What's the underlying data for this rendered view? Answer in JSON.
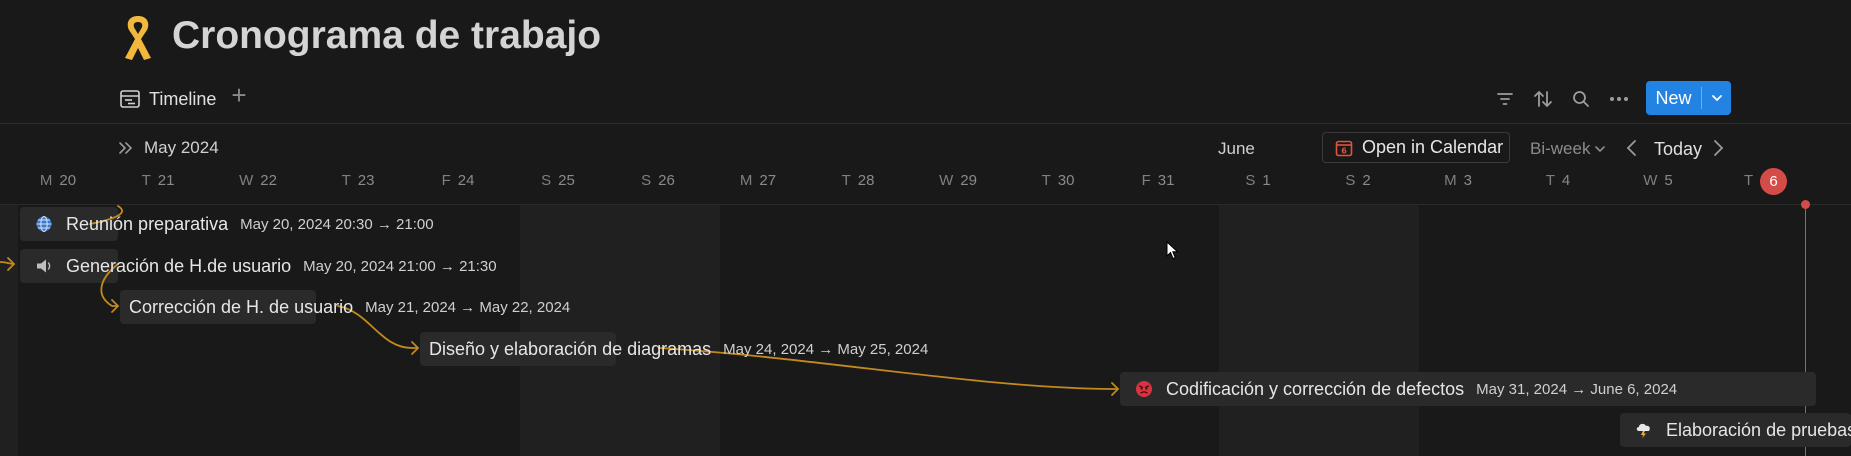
{
  "page": {
    "title": "Cronograma de trabajo",
    "title_icon": "ribbon-icon"
  },
  "views": {
    "active": "Timeline",
    "add_icon": "plus-icon"
  },
  "toolbar": {
    "icons": [
      "filter-icon",
      "sort-icon",
      "search-icon",
      "more-icon"
    ],
    "new_label": "New"
  },
  "timeline": {
    "month_left": "May 2024",
    "month_mid": "June",
    "open_calendar": "Open in Calendar",
    "range": "Bi-week",
    "today": "Today",
    "days": [
      {
        "w": "M",
        "d": "20"
      },
      {
        "w": "T",
        "d": "21"
      },
      {
        "w": "W",
        "d": "22"
      },
      {
        "w": "T",
        "d": "23"
      },
      {
        "w": "F",
        "d": "24"
      },
      {
        "w": "S",
        "d": "25"
      },
      {
        "w": "S",
        "d": "26"
      },
      {
        "w": "M",
        "d": "27"
      },
      {
        "w": "T",
        "d": "28"
      },
      {
        "w": "W",
        "d": "29"
      },
      {
        "w": "T",
        "d": "30"
      },
      {
        "w": "F",
        "d": "31"
      },
      {
        "w": "S",
        "d": "1"
      },
      {
        "w": "S",
        "d": "2"
      },
      {
        "w": "M",
        "d": "3"
      },
      {
        "w": "T",
        "d": "4"
      },
      {
        "w": "W",
        "d": "5"
      }
    ],
    "today_day": {
      "w": "T",
      "d": "6"
    },
    "accent_color": "#d44c47",
    "dependency_color": "#c28a1e"
  },
  "tasks": [
    {
      "name": "Reunión preparativa",
      "dates": "May 20, 2024 20:30 → 21:00",
      "icon": "globe-icon"
    },
    {
      "name": "Generación de H.de usuario",
      "dates": "May 20, 2024 21:00 → 21:30",
      "icon": "speaker-icon"
    },
    {
      "name": "Corrección de H. de usuario",
      "dates": "May 21, 2024 → May 22, 2024",
      "icon": ""
    },
    {
      "name": "Diseño y elaboración de diagramas",
      "dates": "May 24, 2024 → May 25, 2024",
      "icon": ""
    },
    {
      "name": "Codificación y corrección de defectos",
      "dates": "May 31, 2024 → June 6, 2024",
      "icon": "angry-face-icon"
    },
    {
      "name": "Elaboración de pruebas",
      "dates": "",
      "icon": "storm-cloud-icon"
    }
  ]
}
